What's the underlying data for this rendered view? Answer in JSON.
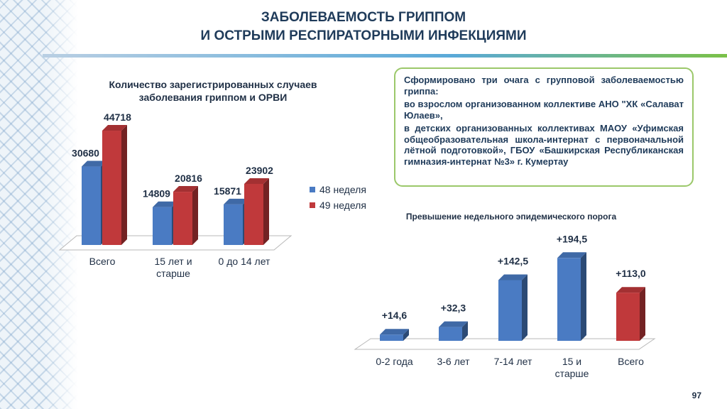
{
  "slide": {
    "title_line1": "ЗАБОЛЕВАЕМОСТЬ ГРИППОМ",
    "title_line2": "И ОСТРЫМИ РЕСПИРАТОРНЫМИ ИНФЕКЦИЯМИ",
    "page_number": "97"
  },
  "info_box": {
    "p1": "Сформировано три очага с групповой заболеваемостью гриппа:",
    "p2": "во взрослом организованном коллективе АНО \"ХК «Салават Юлаев»,",
    "p3": "в детских организованных коллективах МАОУ «Уфимская общеобразовательная школа-интернат с первоначальной лётной подготовкой», ГБОУ «Башкирская Республиканская гимназия-интернат №3» г. Кумертау"
  },
  "colors": {
    "blue": "#4a7bc3",
    "red": "#c0393b",
    "box_border": "#9bc86a"
  },
  "chart_data": [
    {
      "type": "bar",
      "title": "Количество зарегистрированных случаев заболевания гриппом и ОРВИ",
      "categories": [
        "Всего",
        "15 лет и старше",
        "0 до 14 лет"
      ],
      "category_lines": [
        [
          "Всего"
        ],
        [
          "15 лет и",
          "старше"
        ],
        [
          "0 до 14 лет"
        ]
      ],
      "series": [
        {
          "name": "48 неделя",
          "values": [
            30680,
            14809,
            15871
          ],
          "color": "#4a7bc3"
        },
        {
          "name": "49 неделя",
          "values": [
            44718,
            20816,
            23902
          ],
          "color": "#c0393b"
        }
      ],
      "ylim": [
        0,
        50000
      ],
      "legend": "right",
      "grid": false
    },
    {
      "type": "bar",
      "title": "Превышение недельного эпидемического порога",
      "categories": [
        "0-2 года",
        "3-6 лет",
        "7-14 лет",
        "15 и старше",
        "Всего"
      ],
      "category_lines": [
        [
          "0-2 года"
        ],
        [
          "3-6 лет"
        ],
        [
          "7-14 лет"
        ],
        [
          "15 и",
          "старше"
        ],
        [
          "Всего"
        ]
      ],
      "values": [
        14.6,
        32.3,
        142.5,
        194.5,
        113.0
      ],
      "labels": [
        "+14,6",
        "+32,3",
        "+142,5",
        "+194,5",
        "+113,0"
      ],
      "colors": [
        "#4a7bc3",
        "#4a7bc3",
        "#4a7bc3",
        "#4a7bc3",
        "#c0393b"
      ],
      "ylim": [
        0,
        200
      ],
      "grid": false
    }
  ]
}
